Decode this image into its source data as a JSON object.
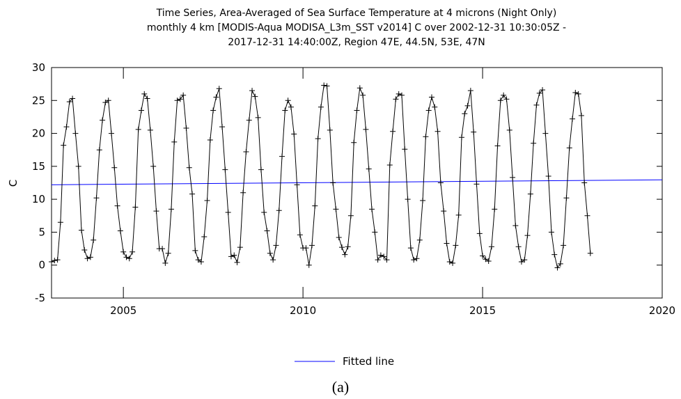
{
  "chart_data": {
    "type": "line",
    "title_lines": [
      "Time Series, Area-Averaged of Sea Surface Temperature at 4 microns (Night Only)",
      "monthly 4 km [MODIS-Aqua MODISA_L3m_SST v2014] C over 2002-12-31 10:30:05Z -",
      "2017-12-31 14:40:00Z, Region 47E, 44.5N, 53E, 47N"
    ],
    "ylabel": "C",
    "xlabel": "",
    "xlim": [
      2003,
      2020
    ],
    "ylim": [
      -5,
      30
    ],
    "x_ticks": [
      2005,
      2010,
      2015,
      2020
    ],
    "y_ticks": [
      -5,
      0,
      5,
      10,
      15,
      20,
      25,
      30
    ],
    "grid": false,
    "legend_position": "bottom-center",
    "caption": "(a)",
    "colors": {
      "series": "#000000",
      "fitted": "#0000ff"
    },
    "x_start": "2003-01",
    "x_step": "1 month",
    "series": [
      {
        "name": "",
        "values": [
          0.5,
          0.7,
          0.8,
          6.5,
          18.2,
          21,
          24.8,
          25.3,
          20,
          15,
          5.3,
          2.3,
          1,
          1.2,
          3.8,
          10.2,
          17.5,
          22,
          24.7,
          25,
          20,
          14.8,
          9,
          5.2,
          2,
          1.2,
          1,
          2,
          8.8,
          20.6,
          23.5,
          26,
          25.3,
          20.5,
          15,
          8.2,
          2.5,
          2.5,
          0.3,
          1.8,
          8.5,
          18.7,
          25,
          25.2,
          25.8,
          20.8,
          14.8,
          10.8,
          2.2,
          0.8,
          0.5,
          4.3,
          9.8,
          19,
          23.5,
          25.5,
          26.8,
          21,
          14.5,
          8,
          1.3,
          1.5,
          0.4,
          2.7,
          11,
          17.2,
          22,
          26.5,
          25.6,
          22.4,
          14.5,
          8,
          5.2,
          1.8,
          0.8,
          3,
          8.3,
          16.5,
          23.5,
          25,
          24,
          19.9,
          12.2,
          4.6,
          2.6,
          2.6,
          0,
          3,
          9,
          19.2,
          24,
          27.3,
          27.2,
          20.5,
          12.5,
          8.5,
          4.2,
          2.7,
          1.6,
          2.8,
          7.5,
          18.6,
          23.5,
          26.9,
          25.8,
          20.6,
          14.6,
          8.5,
          5,
          0.8,
          1.5,
          1.3,
          0.8,
          15.2,
          20.3,
          25.2,
          26,
          25.8,
          17.6,
          10,
          2.6,
          0.8,
          1,
          3.8,
          9.8,
          19.5,
          23.5,
          25.5,
          24,
          20.3,
          12.5,
          8.2,
          3.3,
          0.5,
          0.3,
          3,
          7.6,
          19.4,
          23,
          24.2,
          26.5,
          20.2,
          12.3,
          4.8,
          1.4,
          0.9,
          0.6,
          2.8,
          8.5,
          18.1,
          25,
          25.8,
          25.2,
          20.5,
          13.3,
          6,
          2.8,
          0.5,
          0.8,
          4.5,
          10.8,
          18.5,
          24.3,
          26.1,
          26.6,
          20,
          13.5,
          5,
          1.6,
          -0.4,
          0.2,
          3,
          10.2,
          17.8,
          22.2,
          26.2,
          26,
          22.7,
          12.5,
          7.5,
          1.8
        ]
      },
      {
        "name": "Fitted line",
        "x": [
          2003,
          2020
        ],
        "values": [
          12.2,
          12.95
        ]
      }
    ]
  }
}
